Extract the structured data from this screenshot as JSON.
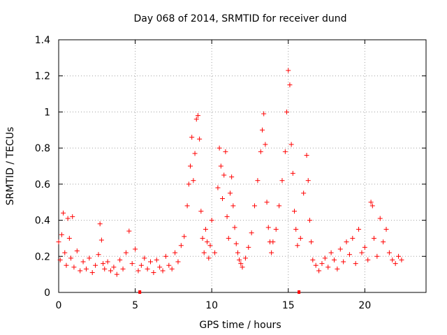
{
  "chart_data": {
    "type": "scatter",
    "title": "Day 068 of 2014, SRMTID for receiver dund",
    "xlabel": "GPS time / hours",
    "ylabel": "SRMTID / TECUs",
    "xlim": [
      0,
      24
    ],
    "ylim": [
      0,
      1.4
    ],
    "xticks": [
      "0",
      "5",
      "10",
      "15",
      "20"
    ],
    "xtick_values": [
      0,
      5,
      10,
      15,
      20
    ],
    "yticks": [
      "0",
      "0.2",
      "0.4",
      "0.6",
      "0.8",
      "1",
      "1.2",
      "1.4"
    ],
    "ytick_values": [
      0,
      0.2,
      0.4,
      0.6,
      0.8,
      1.0,
      1.2,
      1.4
    ],
    "grid": true,
    "marker": "+",
    "color": "#ff0000",
    "series": [
      {
        "name": "SRMTID",
        "x": [
          0.0,
          0.1,
          0.2,
          0.3,
          0.4,
          0.5,
          0.6,
          0.7,
          0.8,
          0.9,
          1.0,
          1.2,
          1.4,
          1.6,
          1.8,
          2.0,
          2.2,
          2.4,
          2.6,
          2.7,
          2.8,
          2.9,
          3.0,
          3.2,
          3.4,
          3.6,
          3.8,
          4.0,
          4.2,
          4.4,
          4.6,
          4.8,
          5.0,
          5.2,
          5.4,
          5.6,
          5.8,
          6.0,
          6.2,
          6.4,
          6.6,
          6.8,
          7.0,
          7.2,
          7.4,
          7.6,
          7.8,
          8.0,
          8.2,
          8.4,
          8.5,
          8.6,
          8.7,
          8.8,
          8.9,
          9.0,
          9.1,
          9.2,
          9.3,
          9.4,
          9.5,
          9.6,
          9.7,
          9.8,
          9.9,
          10.0,
          10.2,
          10.4,
          10.5,
          10.6,
          10.7,
          10.8,
          10.9,
          11.0,
          11.1,
          11.2,
          11.3,
          11.4,
          11.5,
          11.6,
          11.7,
          11.8,
          11.9,
          12.0,
          12.2,
          12.4,
          12.6,
          12.8,
          13.0,
          13.2,
          13.3,
          13.4,
          13.5,
          13.6,
          13.7,
          13.8,
          13.9,
          14.0,
          14.2,
          14.4,
          14.6,
          14.8,
          14.9,
          15.0,
          15.1,
          15.2,
          15.3,
          15.4,
          15.5,
          15.6,
          15.8,
          16.0,
          16.2,
          16.3,
          16.4,
          16.5,
          16.6,
          16.8,
          17.0,
          17.2,
          17.4,
          17.6,
          17.8,
          18.0,
          18.2,
          18.4,
          18.6,
          18.8,
          19.0,
          19.2,
          19.4,
          19.6,
          19.8,
          20.0,
          20.2,
          20.4,
          20.5,
          20.6,
          20.8,
          21.0,
          21.2,
          21.4,
          21.6,
          21.8,
          22.0,
          22.2,
          22.4
        ],
        "y": [
          0.28,
          0.18,
          0.32,
          0.44,
          0.22,
          0.15,
          0.41,
          0.3,
          0.19,
          0.42,
          0.14,
          0.23,
          0.12,
          0.17,
          0.13,
          0.19,
          0.11,
          0.15,
          0.21,
          0.38,
          0.29,
          0.16,
          0.13,
          0.17,
          0.12,
          0.14,
          0.1,
          0.18,
          0.13,
          0.22,
          0.34,
          0.16,
          0.24,
          0.12,
          0.15,
          0.19,
          0.13,
          0.17,
          0.11,
          0.18,
          0.14,
          0.12,
          0.2,
          0.15,
          0.13,
          0.22,
          0.17,
          0.26,
          0.31,
          0.48,
          0.6,
          0.7,
          0.86,
          0.62,
          0.77,
          0.96,
          0.98,
          0.85,
          0.45,
          0.3,
          0.22,
          0.35,
          0.28,
          0.19,
          0.26,
          0.4,
          0.22,
          0.58,
          0.8,
          0.7,
          0.52,
          0.65,
          0.78,
          0.42,
          0.3,
          0.55,
          0.64,
          0.48,
          0.36,
          0.27,
          0.22,
          0.18,
          0.16,
          0.14,
          0.19,
          0.25,
          0.33,
          0.48,
          0.62,
          0.78,
          0.9,
          0.99,
          0.82,
          0.5,
          0.36,
          0.28,
          0.22,
          0.28,
          0.35,
          0.48,
          0.62,
          0.78,
          1.0,
          1.23,
          1.15,
          0.82,
          0.66,
          0.45,
          0.35,
          0.26,
          0.3,
          0.55,
          0.76,
          0.62,
          0.4,
          0.28,
          0.18,
          0.15,
          0.12,
          0.16,
          0.19,
          0.14,
          0.22,
          0.18,
          0.13,
          0.24,
          0.17,
          0.28,
          0.21,
          0.3,
          0.16,
          0.35,
          0.22,
          0.25,
          0.18,
          0.5,
          0.48,
          0.3,
          0.2,
          0.41,
          0.28,
          0.35,
          0.22,
          0.18,
          0.16,
          0.2,
          0.18
        ]
      }
    ],
    "near_zero_markers": [
      5.3,
      15.7
    ]
  }
}
